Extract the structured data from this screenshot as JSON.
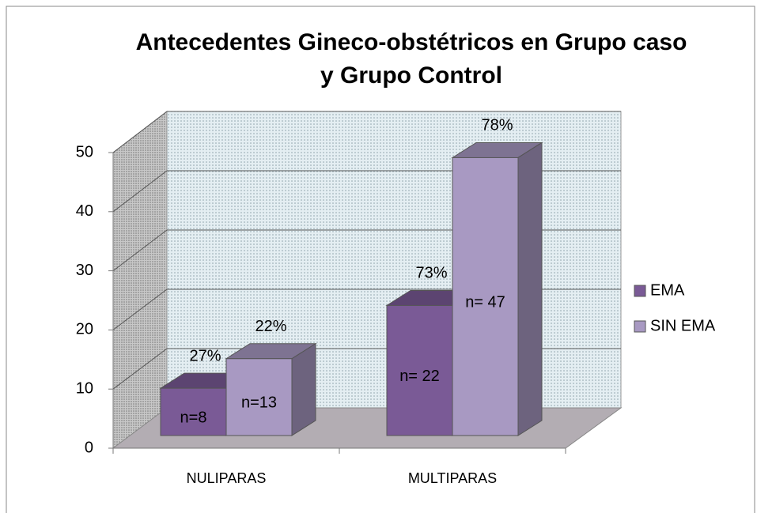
{
  "chart_data": {
    "type": "bar3d",
    "title": [
      "Antecedentes Gineco-obstétricos en Grupo caso",
      "y Grupo Control"
    ],
    "categories": [
      "NULIPARAS",
      "MULTIPARAS"
    ],
    "series": [
      {
        "name": "EMA",
        "color": "#7a5a96",
        "values": [
          8,
          22
        ],
        "value_labels": [
          "n=8",
          "n= 22"
        ],
        "percent_labels": [
          "27%",
          "73%"
        ]
      },
      {
        "name": "SIN EMA",
        "color": "#a899c2",
        "values": [
          13,
          47
        ],
        "value_labels": [
          "n=13",
          "n= 47"
        ],
        "percent_labels": [
          "22%",
          "78%"
        ]
      }
    ],
    "ylim": [
      0,
      50
    ],
    "yticks": [
      0,
      10,
      20,
      30,
      40,
      50
    ],
    "grid": true,
    "legend": "right"
  }
}
